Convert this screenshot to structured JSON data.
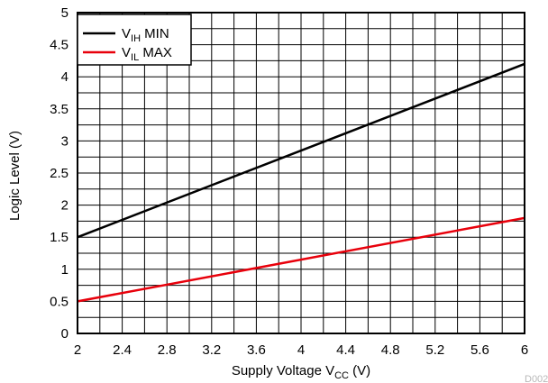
{
  "chart_data": {
    "type": "line",
    "xlabel": "Supply Voltage V",
    "xlabel_sub": "CC",
    "xlabel_unit": " (V)",
    "ylabel": "Logic Level (V)",
    "xlim": [
      2,
      6
    ],
    "ylim": [
      0,
      5
    ],
    "grid": true,
    "x_ticks": [
      2,
      2.4,
      2.8,
      3.2,
      3.6,
      4,
      4.4,
      4.8,
      5.2,
      5.6,
      6
    ],
    "x_tick_labels": [
      "2",
      "2.4",
      "2.8",
      "3.2",
      "3.6",
      "4",
      "4.4",
      "4.8",
      "5.2",
      "5.6",
      "6"
    ],
    "y_ticks": [
      0,
      0.5,
      1,
      1.5,
      2,
      2.5,
      3,
      3.5,
      4,
      4.5,
      5
    ],
    "y_tick_labels": [
      "0",
      "0.5",
      "1",
      "1.5",
      "2",
      "2.5",
      "3",
      "3.5",
      "4",
      "4.5",
      "5"
    ],
    "x_minor_step": 0.2,
    "y_minor_step": 0.25,
    "legend_position": "top-left",
    "series": [
      {
        "name": "V_IH MIN",
        "name_main": "V",
        "name_sub": "IH",
        "name_suffix": " MIN",
        "color": "#000000",
        "x": [
          2,
          6
        ],
        "y": [
          1.5,
          4.2
        ]
      },
      {
        "name": "V_IL MAX",
        "name_main": "V",
        "name_sub": "IL",
        "name_suffix": " MAX",
        "color": "#e8000b",
        "x": [
          2,
          6
        ],
        "y": [
          0.5,
          1.8
        ]
      }
    ],
    "figure_code": "D002"
  }
}
